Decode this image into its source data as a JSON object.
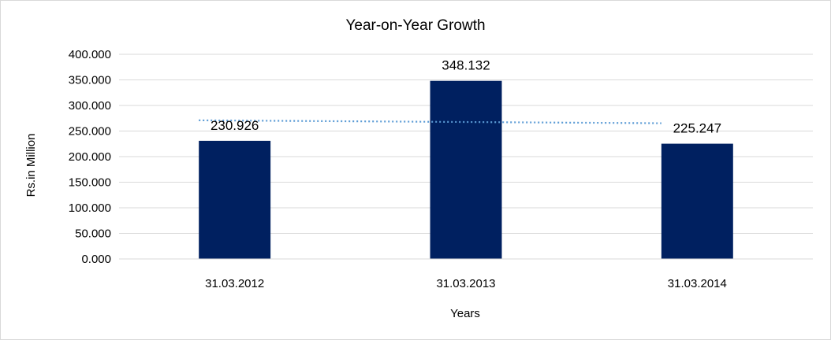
{
  "chart_data": {
    "type": "bar",
    "title": "Year-on-Year Growth",
    "xlabel": "Years",
    "ylabel": "Rs.in Million",
    "categories": [
      "31.03.2012",
      "31.03.2013",
      "31.03.2014"
    ],
    "values": [
      230.926,
      348.132,
      225.247
    ],
    "value_labels": [
      "230.926",
      "348.132",
      "225.247"
    ],
    "ylim": [
      0,
      400
    ],
    "yticks": [
      0,
      50,
      100,
      150,
      200,
      250,
      300,
      350,
      400
    ],
    "ytick_labels": [
      "0.000",
      "50.000",
      "100.000",
      "150.000",
      "200.000",
      "250.000",
      "300.000",
      "350.000",
      "400.000"
    ],
    "trendline": {
      "type": "linear",
      "style": "dotted",
      "color": "#5b9bd5"
    },
    "grid": true,
    "bar_color": "#002060",
    "legend": "none"
  }
}
